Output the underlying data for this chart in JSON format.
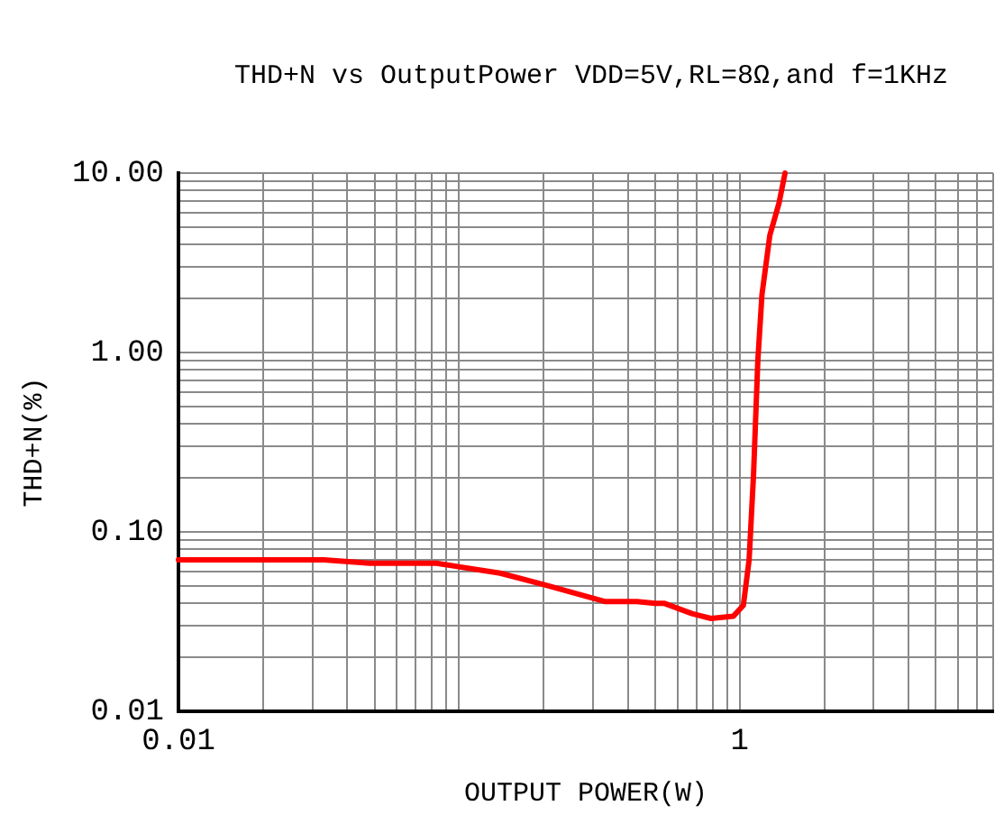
{
  "chart_data": {
    "type": "line",
    "title": "THD+N vs OutputPower VDD=5V,RL=8Ω,and f=1KHz",
    "xlabel": "OUTPUT POWER(W)",
    "ylabel": "THD+N(%)",
    "log": "xy",
    "grid": true,
    "legend": false,
    "marker": "none",
    "line_style": "solid",
    "xlim": [
      0.01,
      8
    ],
    "ylim": [
      0.01,
      10
    ],
    "xticks": [
      {
        "value": 0.01,
        "label": "0.01"
      },
      {
        "value": 0.02,
        "label": null
      },
      {
        "value": 0.03,
        "label": null
      },
      {
        "value": 0.04,
        "label": null
      },
      {
        "value": 0.05,
        "label": null
      },
      {
        "value": 0.06,
        "label": null
      },
      {
        "value": 0.07,
        "label": null
      },
      {
        "value": 0.08,
        "label": null
      },
      {
        "value": 0.09,
        "label": null
      },
      {
        "value": 0.1,
        "label": null
      },
      {
        "value": 0.2,
        "label": null
      },
      {
        "value": 0.3,
        "label": null
      },
      {
        "value": 0.4,
        "label": null
      },
      {
        "value": 0.5,
        "label": null
      },
      {
        "value": 0.6,
        "label": null
      },
      {
        "value": 0.7,
        "label": null
      },
      {
        "value": 0.8,
        "label": null
      },
      {
        "value": 0.9,
        "label": null
      },
      {
        "value": 1,
        "label": "1"
      },
      {
        "value": 2,
        "label": null
      },
      {
        "value": 3,
        "label": null
      },
      {
        "value": 4,
        "label": null
      },
      {
        "value": 5,
        "label": null
      },
      {
        "value": 6,
        "label": null
      },
      {
        "value": 7,
        "label": null
      },
      {
        "value": 8,
        "label": null
      }
    ],
    "yticks": [
      {
        "value": 0.01,
        "label": "0.01"
      },
      {
        "value": 0.02,
        "label": null
      },
      {
        "value": 0.03,
        "label": null
      },
      {
        "value": 0.04,
        "label": null
      },
      {
        "value": 0.05,
        "label": null
      },
      {
        "value": 0.06,
        "label": null
      },
      {
        "value": 0.07,
        "label": null
      },
      {
        "value": 0.08,
        "label": null
      },
      {
        "value": 0.09,
        "label": null
      },
      {
        "value": 0.1,
        "label": "0.10"
      },
      {
        "value": 0.2,
        "label": null
      },
      {
        "value": 0.3,
        "label": null
      },
      {
        "value": 0.4,
        "label": null
      },
      {
        "value": 0.5,
        "label": null
      },
      {
        "value": 0.6,
        "label": null
      },
      {
        "value": 0.7,
        "label": null
      },
      {
        "value": 0.8,
        "label": null
      },
      {
        "value": 0.9,
        "label": null
      },
      {
        "value": 1,
        "label": "1.00"
      },
      {
        "value": 2,
        "label": null
      },
      {
        "value": 3,
        "label": null
      },
      {
        "value": 4,
        "label": null
      },
      {
        "value": 5,
        "label": null
      },
      {
        "value": 6,
        "label": null
      },
      {
        "value": 7,
        "label": null
      },
      {
        "value": 8,
        "label": null
      },
      {
        "value": 9,
        "label": null
      },
      {
        "value": 10,
        "label": "10.00"
      }
    ],
    "x": [
      0.01,
      0.033,
      0.048,
      0.083,
      0.14,
      0.2,
      0.33,
      0.43,
      0.5,
      0.54,
      0.68,
      0.79,
      0.95,
      1.03,
      1.08,
      1.12,
      1.16,
      1.2,
      1.28,
      1.38,
      1.45
    ],
    "series": [
      {
        "color": "#ff0000",
        "values": [
          0.07,
          0.07,
          0.067,
          0.067,
          0.059,
          0.051,
          0.041,
          0.041,
          0.04,
          0.04,
          0.035,
          0.033,
          0.034,
          0.039,
          0.07,
          0.21,
          0.9,
          2.1,
          4.5,
          6.8,
          10
        ]
      }
    ]
  }
}
